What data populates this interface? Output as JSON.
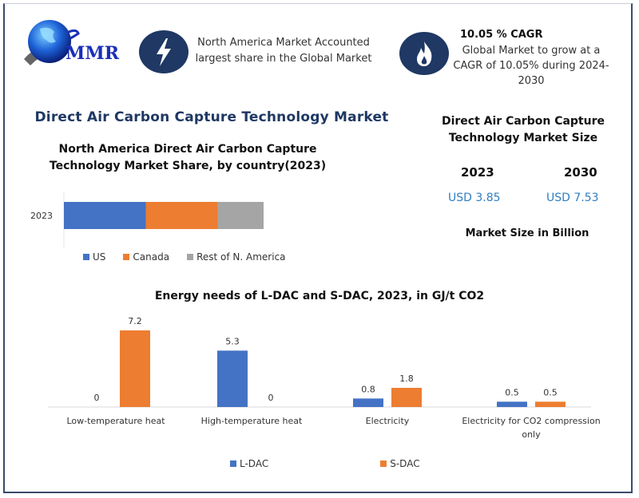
{
  "brand": {
    "logo_text": "MMR"
  },
  "colors": {
    "navy": "#1f3864",
    "blue": "#4472c4",
    "orange": "#ed7d31",
    "gray": "#a5a5a5",
    "usd": "#2f7fc1"
  },
  "highlights": [
    {
      "icon": "lightning-bolt-icon",
      "text": "North America Market Accounted largest share in the Global Market"
    },
    {
      "icon": "flame-icon",
      "title": "10.05 % CAGR",
      "text": "Global Market to grow at a CAGR of 10.05% during 2024-2030"
    }
  ],
  "main_title": "Direct Air Carbon Capture Technology Market",
  "market_size": {
    "title": "Direct Air Carbon Capture Technology Market Size",
    "years": [
      {
        "year": "2023",
        "value": "USD 3.85"
      },
      {
        "year": "2030",
        "value": "USD 7.53"
      }
    ],
    "note": "Market Size in Billion"
  },
  "chart_data": [
    {
      "type": "bar",
      "orientation": "horizontal-stacked",
      "title": "North America Direct Air Carbon Capture Technology Market Share, by country(2023)",
      "categories": [
        "2023"
      ],
      "series": [
        {
          "name": "US",
          "values": [
            41
          ]
        },
        {
          "name": "Canada",
          "values": [
            36
          ]
        },
        {
          "name": "Rest of N. America",
          "values": [
            23
          ]
        }
      ],
      "xlabel": "",
      "ylabel": "",
      "units": "percent (estimated)",
      "legend": "bottom",
      "grid": false
    },
    {
      "type": "bar",
      "title": "Energy needs of L-DAC and S-DAC, 2023, in GJ/t CO2",
      "categories": [
        "Low-temperature heat",
        "High-temperature heat",
        "Electricity",
        "Electricity for CO2 compression only"
      ],
      "series": [
        {
          "name": "L-DAC",
          "values": [
            0,
            5.3,
            0.8,
            0.5
          ]
        },
        {
          "name": "S-DAC",
          "values": [
            7.2,
            0,
            1.8,
            0.5
          ]
        }
      ],
      "xlabel": "",
      "ylabel": "",
      "ylim": [
        0,
        7.5
      ],
      "legend": "bottom",
      "grid": false,
      "data_labels": true
    }
  ]
}
